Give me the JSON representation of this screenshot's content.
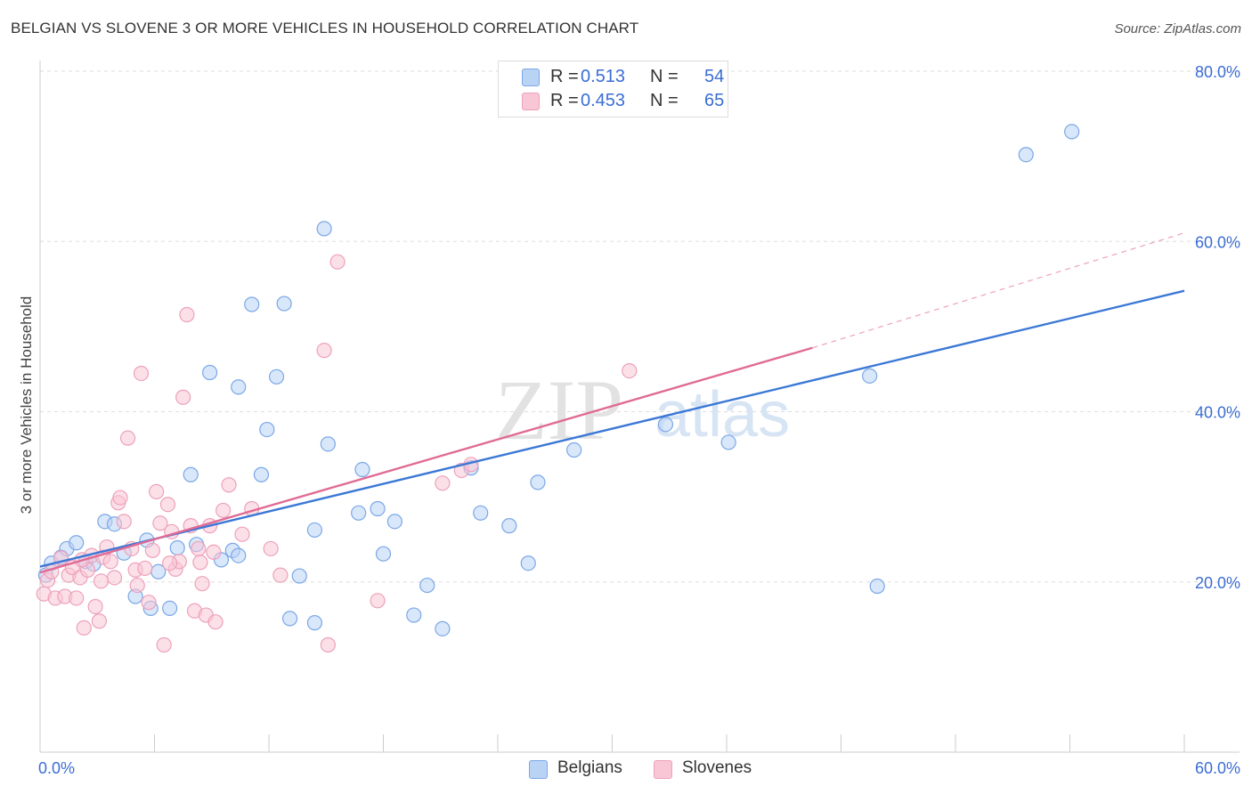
{
  "header": {
    "title": "BELGIAN VS SLOVENE 3 OR MORE VEHICLES IN HOUSEHOLD CORRELATION CHART",
    "source": "Source: ZipAtlas.com"
  },
  "legend": {
    "r_label": "R =",
    "n_label": "N =",
    "items": [
      {
        "name": "Belgians",
        "r": "0.513",
        "n": "54",
        "fill": "#b9d3f5",
        "stroke": "#7aa7e6"
      },
      {
        "name": "Slovenes",
        "r": "0.453",
        "n": "65",
        "fill": "#f9c6d6",
        "stroke": "#eda1bb"
      }
    ]
  },
  "watermark": {
    "zip": "ZIP",
    "atlas": "atlas"
  },
  "chart_data": {
    "type": "scatter",
    "title": "BELGIAN VS SLOVENE 3 OR MORE VEHICLES IN HOUSEHOLD CORRELATION CHART",
    "xlabel": "",
    "ylabel": "3 or more Vehicles in Household",
    "xlim": [
      0,
      60
    ],
    "ylim": [
      0,
      80
    ],
    "x_tick_labels": [
      {
        "v": 0,
        "t": "0.0%"
      },
      {
        "v": 60,
        "t": "60.0%"
      }
    ],
    "y_tick_labels": [
      {
        "v": 20,
        "t": "20.0%"
      },
      {
        "v": 40,
        "t": "40.0%"
      },
      {
        "v": 60,
        "t": "60.0%"
      },
      {
        "v": 80,
        "t": "80.0%"
      }
    ],
    "y_gridlines": [
      20,
      40,
      60,
      80
    ],
    "x_minor_ticks": [
      6,
      12,
      18,
      24,
      30,
      36,
      42,
      48,
      54,
      60
    ],
    "series": [
      {
        "name": "Belgians",
        "color": "#3b78d6",
        "fill": "#b9d3f5",
        "stroke": "#7aa7e6",
        "trend": {
          "x0": 0,
          "y0": 21.8,
          "x1": 60,
          "y1": 54.2
        },
        "points": [
          [
            0.3,
            20.8
          ],
          [
            0.6,
            22.2
          ],
          [
            1.1,
            22.9
          ],
          [
            1.4,
            23.9
          ],
          [
            1.9,
            24.6
          ],
          [
            2.4,
            22.4
          ],
          [
            2.8,
            22.1
          ],
          [
            3.4,
            27.1
          ],
          [
            3.9,
            26.8
          ],
          [
            4.4,
            23.4
          ],
          [
            5.0,
            18.3
          ],
          [
            5.6,
            24.9
          ],
          [
            6.2,
            21.2
          ],
          [
            5.8,
            16.9
          ],
          [
            7.2,
            24.0
          ],
          [
            7.9,
            32.6
          ],
          [
            8.2,
            24.4
          ],
          [
            8.9,
            44.6
          ],
          [
            9.5,
            22.6
          ],
          [
            10.1,
            23.7
          ],
          [
            10.4,
            23.1
          ],
          [
            10.4,
            42.9
          ],
          [
            11.1,
            52.6
          ],
          [
            11.6,
            32.6
          ],
          [
            11.9,
            37.9
          ],
          [
            12.4,
            44.1
          ],
          [
            12.8,
            52.7
          ],
          [
            13.1,
            15.7
          ],
          [
            13.6,
            20.7
          ],
          [
            14.4,
            15.2
          ],
          [
            14.4,
            26.1
          ],
          [
            14.9,
            61.5
          ],
          [
            15.1,
            36.2
          ],
          [
            16.7,
            28.1
          ],
          [
            16.9,
            33.2
          ],
          [
            17.7,
            28.6
          ],
          [
            18.0,
            23.3
          ],
          [
            18.6,
            27.1
          ],
          [
            19.6,
            16.1
          ],
          [
            20.3,
            19.6
          ],
          [
            21.1,
            14.5
          ],
          [
            22.6,
            33.4
          ],
          [
            23.1,
            28.1
          ],
          [
            24.6,
            26.6
          ],
          [
            25.6,
            22.2
          ],
          [
            26.1,
            31.7
          ],
          [
            28.0,
            35.5
          ],
          [
            32.8,
            38.5
          ],
          [
            36.1,
            36.4
          ],
          [
            43.5,
            44.2
          ],
          [
            43.9,
            19.5
          ],
          [
            51.7,
            70.2
          ],
          [
            54.1,
            72.9
          ],
          [
            6.8,
            16.9
          ]
        ]
      },
      {
        "name": "Slovenes",
        "color": "#e06b95",
        "fill": "#f9c6d6",
        "stroke": "#eda1bb",
        "trend": {
          "x0": 0,
          "y0": 21.1,
          "x1": 40.5,
          "y1": 47.5
        },
        "trend_ext": {
          "x0": 40.5,
          "y0": 47.5,
          "x1": 60,
          "y1": 61.0
        },
        "points": [
          [
            0.2,
            18.6
          ],
          [
            0.4,
            20.2
          ],
          [
            0.6,
            21.2
          ],
          [
            0.8,
            18.1
          ],
          [
            1.1,
            22.8
          ],
          [
            1.3,
            18.3
          ],
          [
            1.5,
            20.8
          ],
          [
            1.7,
            21.7
          ],
          [
            1.9,
            18.1
          ],
          [
            2.1,
            20.5
          ],
          [
            2.3,
            14.6
          ],
          [
            2.5,
            21.4
          ],
          [
            2.7,
            23.1
          ],
          [
            2.9,
            17.1
          ],
          [
            3.1,
            15.4
          ],
          [
            3.3,
            22.9
          ],
          [
            3.5,
            24.1
          ],
          [
            3.7,
            22.4
          ],
          [
            3.9,
            20.5
          ],
          [
            4.1,
            29.3
          ],
          [
            4.2,
            29.9
          ],
          [
            4.4,
            27.1
          ],
          [
            4.6,
            36.9
          ],
          [
            4.8,
            23.9
          ],
          [
            5.0,
            21.4
          ],
          [
            5.1,
            19.6
          ],
          [
            5.3,
            44.5
          ],
          [
            5.5,
            21.6
          ],
          [
            5.7,
            17.6
          ],
          [
            5.9,
            23.7
          ],
          [
            6.1,
            30.6
          ],
          [
            6.3,
            26.9
          ],
          [
            6.5,
            12.6
          ],
          [
            6.7,
            29.1
          ],
          [
            6.9,
            25.9
          ],
          [
            7.1,
            21.5
          ],
          [
            7.3,
            22.4
          ],
          [
            7.5,
            41.7
          ],
          [
            7.7,
            51.4
          ],
          [
            7.9,
            26.6
          ],
          [
            8.1,
            16.6
          ],
          [
            8.3,
            23.9
          ],
          [
            8.5,
            19.8
          ],
          [
            8.7,
            16.1
          ],
          [
            8.9,
            26.6
          ],
          [
            9.2,
            15.3
          ],
          [
            9.6,
            28.4
          ],
          [
            9.9,
            31.4
          ],
          [
            10.6,
            25.6
          ],
          [
            11.1,
            28.6
          ],
          [
            12.1,
            23.9
          ],
          [
            12.6,
            20.8
          ],
          [
            14.9,
            47.2
          ],
          [
            15.1,
            12.6
          ],
          [
            15.6,
            57.6
          ],
          [
            17.7,
            17.8
          ],
          [
            21.1,
            31.6
          ],
          [
            22.1,
            33.1
          ],
          [
            22.6,
            33.8
          ],
          [
            30.9,
            44.8
          ],
          [
            8.4,
            22.3
          ],
          [
            9.1,
            23.5
          ],
          [
            2.2,
            22.6
          ],
          [
            3.2,
            20.1
          ],
          [
            6.8,
            22.2
          ]
        ]
      }
    ]
  }
}
